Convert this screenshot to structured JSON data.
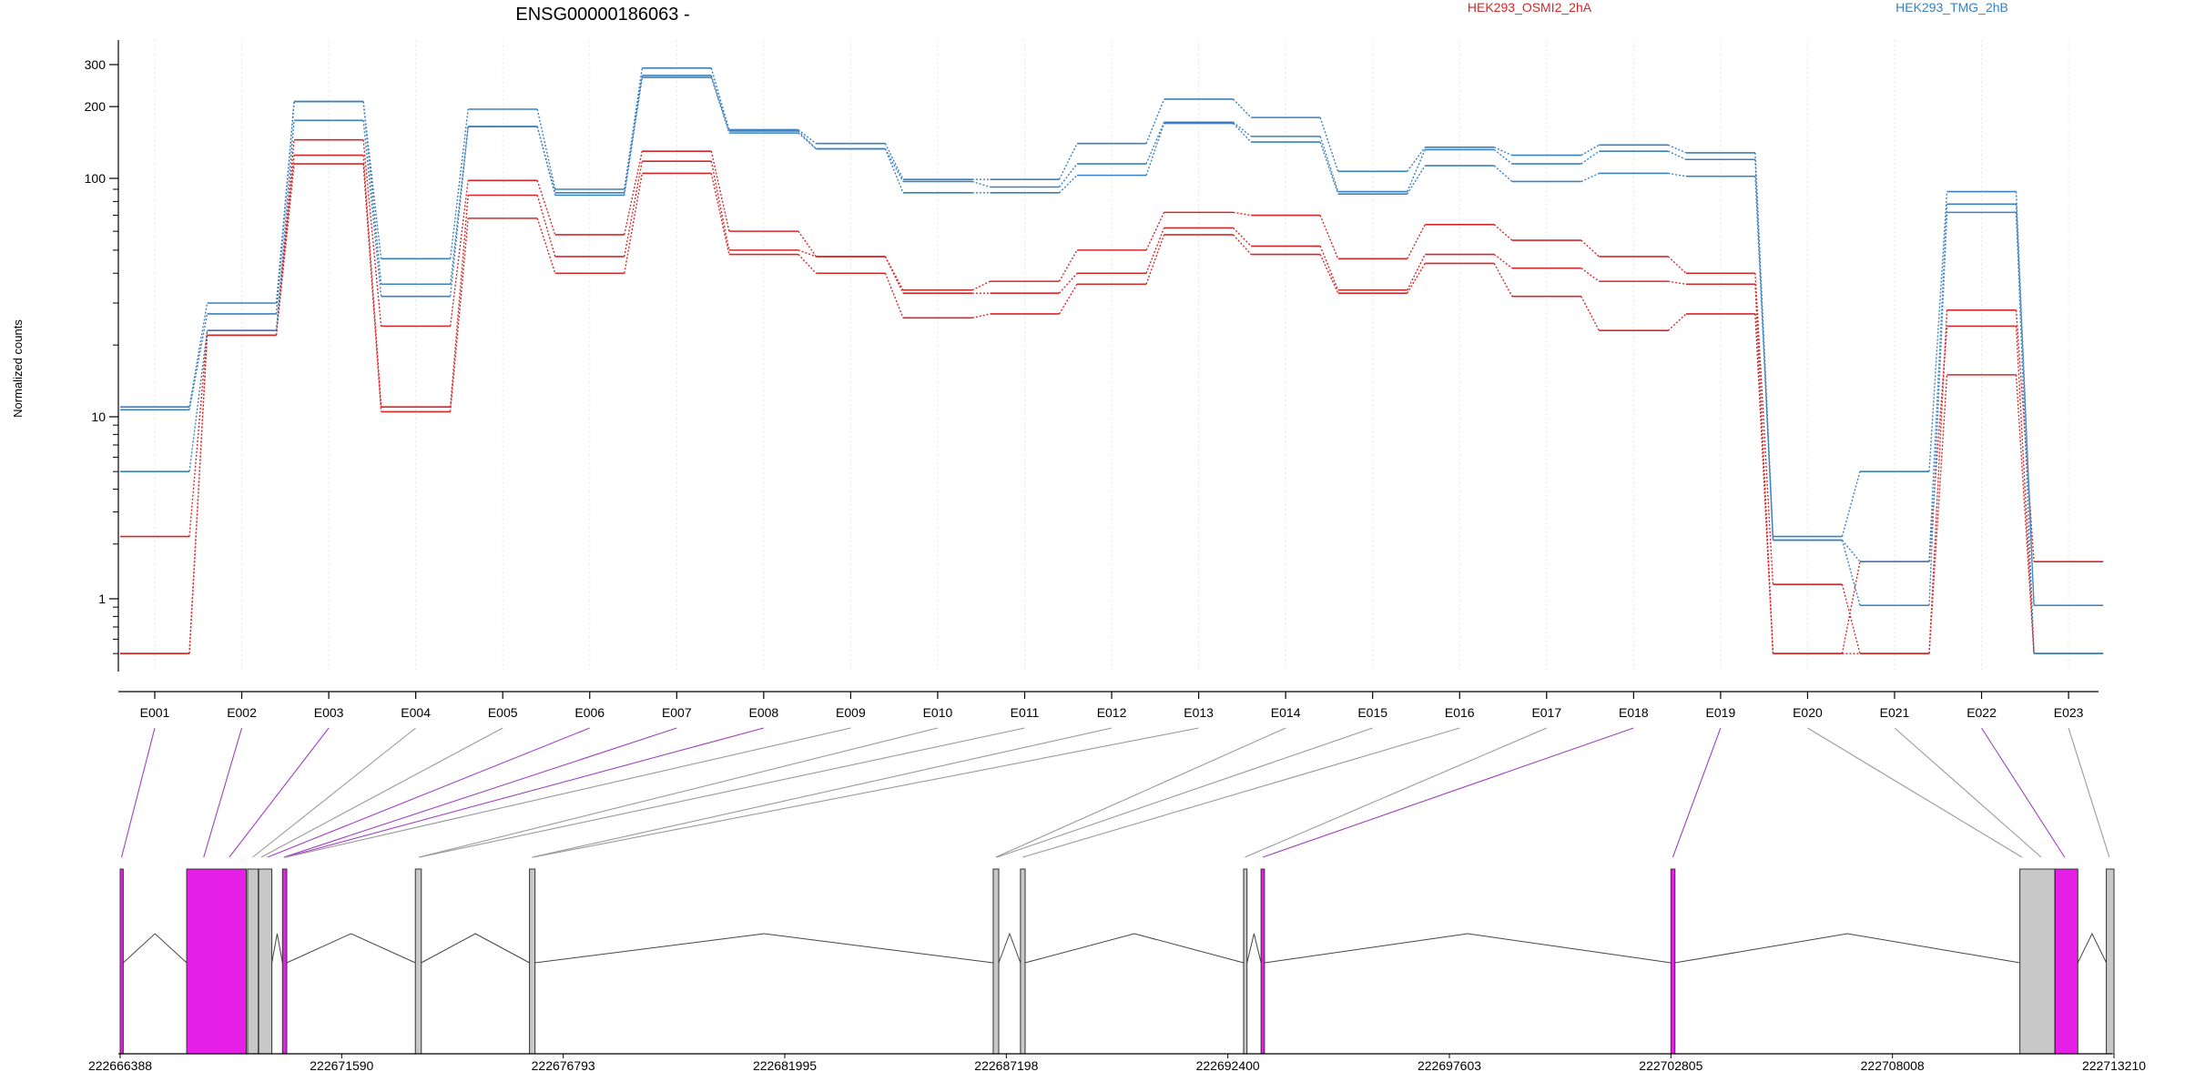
{
  "chart_data": {
    "type": "line",
    "title": "ENSG00000186063 -",
    "ylabel": "Normalized counts",
    "yscale": "log",
    "yticks": [
      1,
      10,
      100,
      200,
      300
    ],
    "categories": [
      "E001",
      "E002",
      "E003",
      "E004",
      "E005",
      "E006",
      "E007",
      "E008",
      "E009",
      "E010",
      "E011",
      "E012",
      "E013",
      "E014",
      "E015",
      "E016",
      "E017",
      "E018",
      "E019",
      "E020",
      "E021",
      "E022",
      "E023"
    ],
    "groups": [
      {
        "name": "HEK293_OSMI2_2hA",
        "color": "#d62728"
      },
      {
        "name": "HEK293_TMG_2hB",
        "color": "#3a80c0"
      }
    ],
    "series": [
      {
        "group": 0,
        "values": [
          0.5,
          22,
          145,
          24,
          98,
          58,
          130,
          60,
          47,
          34,
          37,
          50,
          72,
          70,
          46,
          64,
          55,
          47,
          40,
          1.2,
          0.5,
          28,
          1.6
        ]
      },
      {
        "group": 0,
        "values": [
          2.2,
          23,
          125,
          11,
          85,
          47,
          118,
          50,
          47,
          33,
          33,
          40,
          62,
          52,
          34,
          48,
          42,
          37,
          36,
          0.5,
          1.6,
          24,
          0.5
        ]
      },
      {
        "group": 0,
        "values": [
          0.5,
          22,
          115,
          10.5,
          68,
          40,
          105,
          48,
          40,
          26,
          27,
          36,
          58,
          48,
          33,
          44,
          32,
          23,
          27,
          0.5,
          0.5,
          15,
          0.5
        ]
      },
      {
        "group": 1,
        "values": [
          11,
          30,
          210,
          46,
          195,
          90,
          290,
          160,
          140,
          99,
          99,
          140,
          215,
          180,
          107,
          135,
          125,
          138,
          128,
          2.2,
          5,
          88,
          0.92
        ]
      },
      {
        "group": 1,
        "values": [
          10.7,
          27,
          210,
          36,
          165,
          87,
          270,
          158,
          133,
          97,
          92,
          115,
          172,
          150,
          88,
          132,
          115,
          130,
          120,
          2.1,
          1.6,
          78,
          0.92
        ]
      },
      {
        "group": 1,
        "values": [
          5,
          23,
          175,
          32,
          165,
          85,
          265,
          155,
          133,
          87,
          87,
          103,
          170,
          142,
          86,
          113,
          97,
          105,
          102,
          2.1,
          0.92,
          72,
          0.5
        ]
      }
    ],
    "genomic_axis": {
      "ticks": [
        "222666388",
        "222671590",
        "222676793",
        "222681995",
        "222687198",
        "222692400",
        "222697603",
        "222702805",
        "222708008",
        "222713210"
      ],
      "range": [
        222666388,
        222713210
      ]
    },
    "exons": [
      {
        "start": 222666388,
        "end": 222666460,
        "color": "#e61fe6"
      },
      {
        "start": 222667950,
        "end": 222669350,
        "color": "#e61fe6"
      },
      {
        "start": 222669380,
        "end": 222669630,
        "color": "#c8c8c8"
      },
      {
        "start": 222669640,
        "end": 222669950,
        "color": "#c8c8c8"
      },
      {
        "start": 222670200,
        "end": 222670300,
        "color": "#e61fe6"
      },
      {
        "start": 222673320,
        "end": 222673460,
        "color": "#c8c8c8"
      },
      {
        "start": 222676000,
        "end": 222676130,
        "color": "#c8c8c8"
      },
      {
        "start": 222686890,
        "end": 222687020,
        "color": "#c8c8c8"
      },
      {
        "start": 222687530,
        "end": 222687640,
        "color": "#c8c8c8"
      },
      {
        "start": 222692770,
        "end": 222692850,
        "color": "#c8c8c8"
      },
      {
        "start": 222693180,
        "end": 222693260,
        "color": "#e61fe6"
      },
      {
        "start": 222702805,
        "end": 222702900,
        "color": "#e61fe6"
      },
      {
        "start": 222711000,
        "end": 222711820,
        "color": "#c8c8c8"
      },
      {
        "start": 222711830,
        "end": 222712360,
        "color": "#e61fe6"
      },
      {
        "start": 222713030,
        "end": 222713210,
        "color": "#c8c8c8"
      }
    ],
    "connectors": [
      {
        "genomic": 222666420,
        "color": "#a040c0"
      },
      {
        "genomic": 222668350,
        "color": "#a040c0"
      },
      {
        "genomic": 222668950,
        "color": "#a040c0"
      },
      {
        "genomic": 222669500,
        "color": "#999999"
      },
      {
        "genomic": 222669700,
        "color": "#999999"
      },
      {
        "genomic": 222669850,
        "color": "#a040c0"
      },
      {
        "genomic": 222670230,
        "color": "#a040c0"
      },
      {
        "genomic": 222670260,
        "color": "#a040c0"
      },
      {
        "genomic": 222670280,
        "color": "#999999"
      },
      {
        "genomic": 222673400,
        "color": "#999999"
      },
      {
        "genomic": 222673420,
        "color": "#999999"
      },
      {
        "genomic": 222676060,
        "color": "#999999"
      },
      {
        "genomic": 222676090,
        "color": "#999999"
      },
      {
        "genomic": 222686950,
        "color": "#999999"
      },
      {
        "genomic": 222686980,
        "color": "#999999"
      },
      {
        "genomic": 222687580,
        "color": "#999999"
      },
      {
        "genomic": 222692800,
        "color": "#999999"
      },
      {
        "genomic": 222693220,
        "color": "#a040c0"
      },
      {
        "genomic": 222702850,
        "color": "#a040c0"
      },
      {
        "genomic": 222711050,
        "color": "#999999"
      },
      {
        "genomic": 222711500,
        "color": "#999999"
      },
      {
        "genomic": 222712050,
        "color": "#a040c0"
      },
      {
        "genomic": 222713100,
        "color": "#999999"
      }
    ]
  }
}
